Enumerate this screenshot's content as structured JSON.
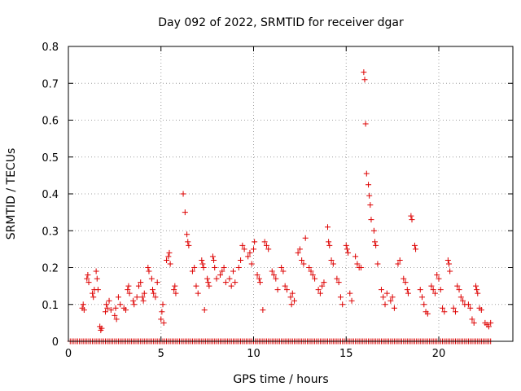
{
  "chart_data": {
    "type": "scatter",
    "title": "Day 092 of 2022, SRMTID for receiver dgar",
    "xlabel": "GPS time / hours",
    "ylabel": "SRMTID / TECUs",
    "xlim": [
      0,
      24
    ],
    "ylim": [
      0,
      0.8
    ],
    "xticks": [
      0,
      5,
      10,
      15,
      20
    ],
    "xtick_labels": [
      "0",
      "5",
      "10",
      "15",
      "20"
    ],
    "yticks": [
      0,
      0.1,
      0.2,
      0.3,
      0.4,
      0.5,
      0.6,
      0.7,
      0.8
    ],
    "ytick_labels": [
      "0",
      "0.1",
      "0.2",
      "0.3",
      "0.4",
      "0.5",
      "0.6",
      "0.7",
      "0.8"
    ],
    "grid": true,
    "marker": "+",
    "color": "#dd0000",
    "zero_series": {
      "x_start": 0.1,
      "x_end": 22.8,
      "x_step": 0.1,
      "y": 0
    },
    "series": [
      {
        "name": "SRMTID",
        "points": [
          [
            0.75,
            0.09
          ],
          [
            0.8,
            0.1
          ],
          [
            0.85,
            0.085
          ],
          [
            1.0,
            0.17
          ],
          [
            1.05,
            0.18
          ],
          [
            1.1,
            0.16
          ],
          [
            1.3,
            0.13
          ],
          [
            1.35,
            0.12
          ],
          [
            1.4,
            0.14
          ],
          [
            1.5,
            0.19
          ],
          [
            1.55,
            0.17
          ],
          [
            1.6,
            0.14
          ],
          [
            1.7,
            0.04
          ],
          [
            1.75,
            0.03
          ],
          [
            1.8,
            0.035
          ],
          [
            2.0,
            0.08
          ],
          [
            2.05,
            0.1
          ],
          [
            2.1,
            0.09
          ],
          [
            2.2,
            0.11
          ],
          [
            2.3,
            0.085
          ],
          [
            2.5,
            0.07
          ],
          [
            2.55,
            0.09
          ],
          [
            2.6,
            0.06
          ],
          [
            2.7,
            0.12
          ],
          [
            2.8,
            0.1
          ],
          [
            3.0,
            0.09
          ],
          [
            3.1,
            0.085
          ],
          [
            3.2,
            0.14
          ],
          [
            3.25,
            0.15
          ],
          [
            3.3,
            0.13
          ],
          [
            3.5,
            0.11
          ],
          [
            3.55,
            0.1
          ],
          [
            3.7,
            0.12
          ],
          [
            3.8,
            0.15
          ],
          [
            3.9,
            0.16
          ],
          [
            4.0,
            0.12
          ],
          [
            4.05,
            0.11
          ],
          [
            4.1,
            0.13
          ],
          [
            4.3,
            0.2
          ],
          [
            4.35,
            0.19
          ],
          [
            4.5,
            0.17
          ],
          [
            4.55,
            0.14
          ],
          [
            4.6,
            0.13
          ],
          [
            4.7,
            0.12
          ],
          [
            4.8,
            0.16
          ],
          [
            5.0,
            0.06
          ],
          [
            5.05,
            0.08
          ],
          [
            5.1,
            0.1
          ],
          [
            5.15,
            0.05
          ],
          [
            5.3,
            0.22
          ],
          [
            5.4,
            0.23
          ],
          [
            5.45,
            0.24
          ],
          [
            5.5,
            0.21
          ],
          [
            5.7,
            0.14
          ],
          [
            5.75,
            0.15
          ],
          [
            5.8,
            0.13
          ],
          [
            6.2,
            0.4
          ],
          [
            6.3,
            0.35
          ],
          [
            6.4,
            0.29
          ],
          [
            6.45,
            0.27
          ],
          [
            6.5,
            0.26
          ],
          [
            6.7,
            0.19
          ],
          [
            6.8,
            0.2
          ],
          [
            6.9,
            0.15
          ],
          [
            7.0,
            0.13
          ],
          [
            7.2,
            0.22
          ],
          [
            7.25,
            0.21
          ],
          [
            7.3,
            0.2
          ],
          [
            7.35,
            0.085
          ],
          [
            7.5,
            0.17
          ],
          [
            7.55,
            0.16
          ],
          [
            7.6,
            0.15
          ],
          [
            7.8,
            0.23
          ],
          [
            7.85,
            0.22
          ],
          [
            7.9,
            0.2
          ],
          [
            8.0,
            0.17
          ],
          [
            8.2,
            0.18
          ],
          [
            8.3,
            0.19
          ],
          [
            8.4,
            0.2
          ],
          [
            8.5,
            0.16
          ],
          [
            8.7,
            0.17
          ],
          [
            8.8,
            0.15
          ],
          [
            8.9,
            0.19
          ],
          [
            9.0,
            0.16
          ],
          [
            9.2,
            0.2
          ],
          [
            9.3,
            0.22
          ],
          [
            9.4,
            0.26
          ],
          [
            9.5,
            0.25
          ],
          [
            9.7,
            0.23
          ],
          [
            9.8,
            0.24
          ],
          [
            9.9,
            0.21
          ],
          [
            10.0,
            0.25
          ],
          [
            10.05,
            0.27
          ],
          [
            10.2,
            0.18
          ],
          [
            10.3,
            0.17
          ],
          [
            10.35,
            0.16
          ],
          [
            10.5,
            0.085
          ],
          [
            10.6,
            0.27
          ],
          [
            10.7,
            0.26
          ],
          [
            10.8,
            0.25
          ],
          [
            11.0,
            0.19
          ],
          [
            11.1,
            0.18
          ],
          [
            11.2,
            0.17
          ],
          [
            11.3,
            0.14
          ],
          [
            11.5,
            0.2
          ],
          [
            11.6,
            0.19
          ],
          [
            11.7,
            0.15
          ],
          [
            11.8,
            0.14
          ],
          [
            12.0,
            0.12
          ],
          [
            12.05,
            0.1
          ],
          [
            12.1,
            0.13
          ],
          [
            12.2,
            0.11
          ],
          [
            12.4,
            0.24
          ],
          [
            12.5,
            0.25
          ],
          [
            12.6,
            0.22
          ],
          [
            12.7,
            0.21
          ],
          [
            12.8,
            0.28
          ],
          [
            13.0,
            0.2
          ],
          [
            13.1,
            0.19
          ],
          [
            13.2,
            0.18
          ],
          [
            13.3,
            0.17
          ],
          [
            13.5,
            0.14
          ],
          [
            13.6,
            0.13
          ],
          [
            13.7,
            0.15
          ],
          [
            13.8,
            0.16
          ],
          [
            14.0,
            0.31
          ],
          [
            14.05,
            0.27
          ],
          [
            14.1,
            0.26
          ],
          [
            14.2,
            0.22
          ],
          [
            14.3,
            0.21
          ],
          [
            14.5,
            0.17
          ],
          [
            14.6,
            0.16
          ],
          [
            14.7,
            0.12
          ],
          [
            14.8,
            0.1
          ],
          [
            15.0,
            0.26
          ],
          [
            15.05,
            0.25
          ],
          [
            15.1,
            0.24
          ],
          [
            15.2,
            0.13
          ],
          [
            15.3,
            0.11
          ],
          [
            15.5,
            0.23
          ],
          [
            15.6,
            0.21
          ],
          [
            15.7,
            0.2
          ],
          [
            15.8,
            0.2
          ],
          [
            15.95,
            0.73
          ],
          [
            16.0,
            0.71
          ],
          [
            16.05,
            0.59
          ],
          [
            16.1,
            0.455
          ],
          [
            16.2,
            0.425
          ],
          [
            16.25,
            0.395
          ],
          [
            16.3,
            0.37
          ],
          [
            16.35,
            0.33
          ],
          [
            16.5,
            0.3
          ],
          [
            16.55,
            0.27
          ],
          [
            16.6,
            0.26
          ],
          [
            16.7,
            0.21
          ],
          [
            16.9,
            0.14
          ],
          [
            17.0,
            0.12
          ],
          [
            17.1,
            0.1
          ],
          [
            17.2,
            0.13
          ],
          [
            17.4,
            0.11
          ],
          [
            17.5,
            0.12
          ],
          [
            17.6,
            0.09
          ],
          [
            17.8,
            0.21
          ],
          [
            17.9,
            0.22
          ],
          [
            18.1,
            0.17
          ],
          [
            18.2,
            0.16
          ],
          [
            18.3,
            0.14
          ],
          [
            18.35,
            0.13
          ],
          [
            18.5,
            0.34
          ],
          [
            18.55,
            0.33
          ],
          [
            18.7,
            0.26
          ],
          [
            18.75,
            0.25
          ],
          [
            19.0,
            0.14
          ],
          [
            19.1,
            0.12
          ],
          [
            19.2,
            0.1
          ],
          [
            19.3,
            0.08
          ],
          [
            19.4,
            0.075
          ],
          [
            19.6,
            0.15
          ],
          [
            19.7,
            0.14
          ],
          [
            19.8,
            0.13
          ],
          [
            19.9,
            0.18
          ],
          [
            20.0,
            0.17
          ],
          [
            20.1,
            0.14
          ],
          [
            20.2,
            0.09
          ],
          [
            20.3,
            0.08
          ],
          [
            20.5,
            0.22
          ],
          [
            20.55,
            0.21
          ],
          [
            20.6,
            0.19
          ],
          [
            20.8,
            0.09
          ],
          [
            20.9,
            0.08
          ],
          [
            21.0,
            0.15
          ],
          [
            21.1,
            0.14
          ],
          [
            21.2,
            0.12
          ],
          [
            21.3,
            0.11
          ],
          [
            21.4,
            0.1
          ],
          [
            21.6,
            0.1
          ],
          [
            21.7,
            0.09
          ],
          [
            21.8,
            0.06
          ],
          [
            21.9,
            0.05
          ],
          [
            22.0,
            0.15
          ],
          [
            22.05,
            0.14
          ],
          [
            22.1,
            0.13
          ],
          [
            22.2,
            0.09
          ],
          [
            22.3,
            0.085
          ],
          [
            22.5,
            0.05
          ],
          [
            22.6,
            0.045
          ],
          [
            22.7,
            0.04
          ],
          [
            22.8,
            0.05
          ]
        ]
      }
    ]
  }
}
